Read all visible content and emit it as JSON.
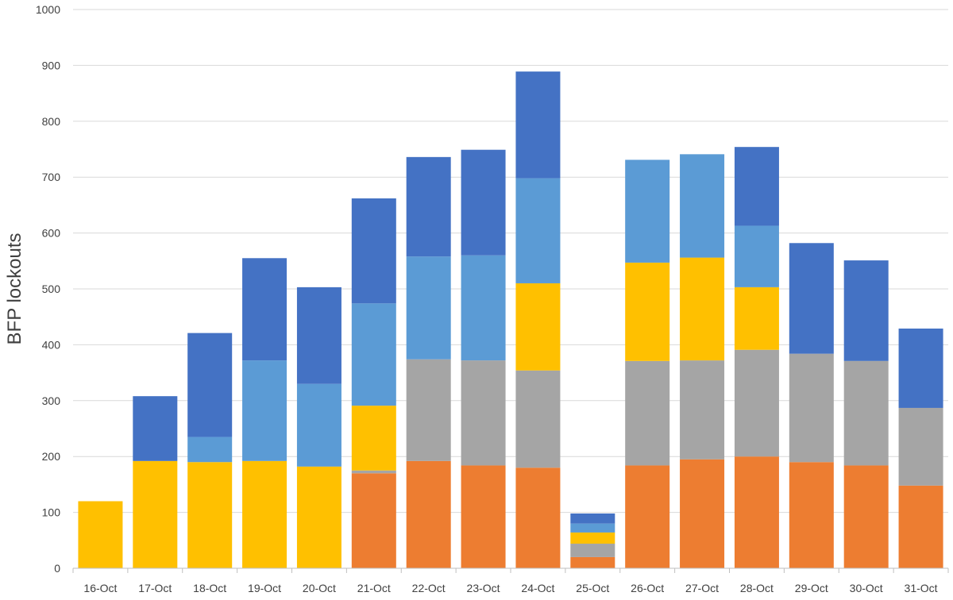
{
  "chart_data": {
    "type": "bar",
    "stacked": true,
    "title": "",
    "xlabel": "",
    "ylabel": "BFP lockouts",
    "ylim": [
      0,
      1000
    ],
    "y_ticks": [
      0,
      100,
      200,
      300,
      400,
      500,
      600,
      700,
      800,
      900,
      1000
    ],
    "grid": true,
    "legend": "none",
    "categories": [
      "16-Oct",
      "17-Oct",
      "18-Oct",
      "19-Oct",
      "20-Oct",
      "21-Oct",
      "22-Oct",
      "23-Oct",
      "24-Oct",
      "25-Oct",
      "26-Oct",
      "27-Oct",
      "28-Oct",
      "29-Oct",
      "30-Oct",
      "31-Oct"
    ],
    "series": [
      {
        "color": "#ED7D31",
        "values": [
          0,
          0,
          0,
          0,
          0,
          170,
          192,
          184,
          180,
          20,
          184,
          195,
          200,
          190,
          184,
          148
        ]
      },
      {
        "color": "#A5A5A5",
        "values": [
          0,
          0,
          0,
          0,
          0,
          5,
          182,
          188,
          174,
          24,
          187,
          177,
          191,
          194,
          187,
          139
        ]
      },
      {
        "color": "#FFC000",
        "values": [
          120,
          192,
          190,
          192,
          182,
          116,
          0,
          0,
          156,
          20,
          176,
          184,
          112,
          0,
          0,
          0
        ]
      },
      {
        "color": "#5B9BD5",
        "values": [
          0,
          0,
          45,
          180,
          148,
          183,
          184,
          188,
          188,
          16,
          184,
          185,
          110,
          0,
          0,
          0
        ]
      },
      {
        "color": "#4472C4",
        "values": [
          0,
          116,
          186,
          183,
          173,
          188,
          178,
          189,
          191,
          18,
          0,
          0,
          141,
          198,
          180,
          142
        ]
      }
    ]
  }
}
